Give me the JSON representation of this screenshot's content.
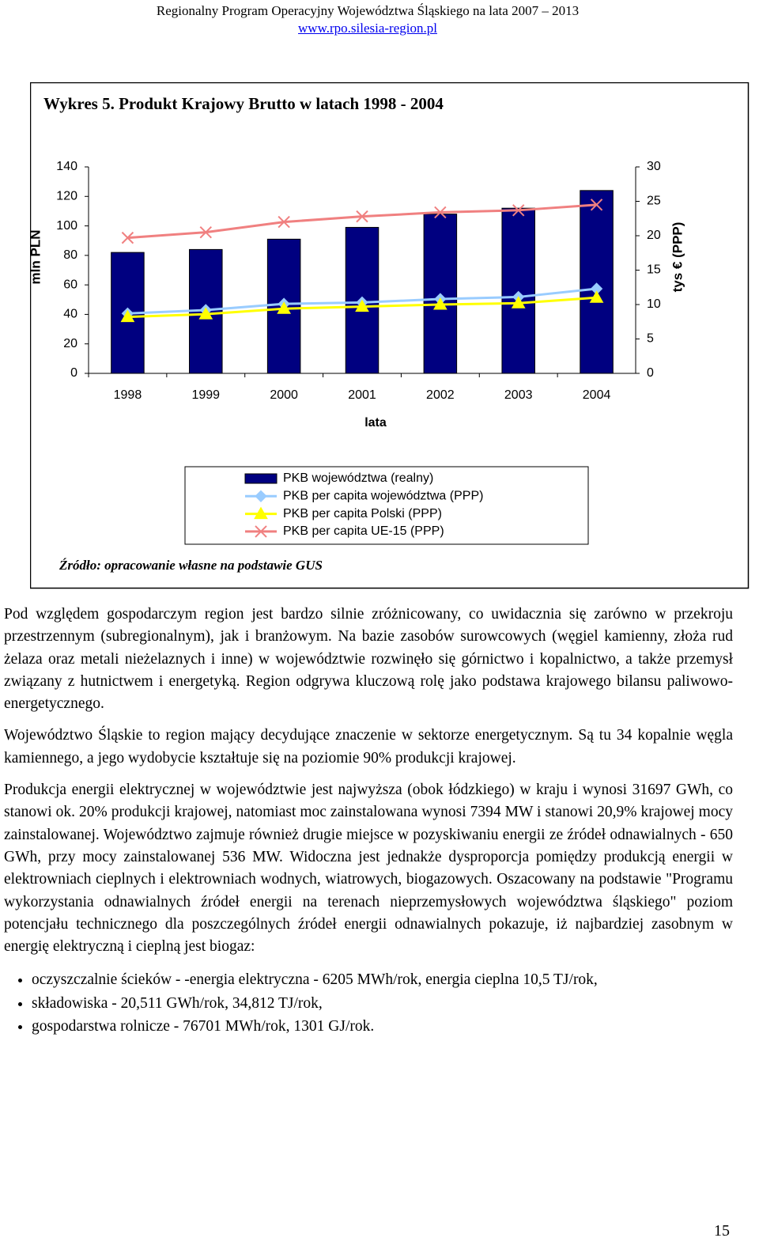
{
  "header": {
    "title": "Regionalny Program Operacyjny Województwa Śląskiego na lata 2007 – 2013",
    "url": "www.rpo.silesia-region.pl"
  },
  "chart_data": {
    "type": "bar",
    "title": "Wykres 5. Produkt Krajowy Brutto w latach 1998 - 2004",
    "x_label": "lata",
    "y_label": "mln PLN",
    "y2_label": "tys € (PPP)",
    "categories": [
      "1998",
      "1999",
      "2000",
      "2001",
      "2002",
      "2003",
      "2004"
    ],
    "series": [
      {
        "name": "PKB województwa (realny)",
        "kind": "bar",
        "color": "#000080",
        "axis": "y",
        "values": [
          82,
          84,
          91,
          99,
          108,
          112,
          124
        ]
      },
      {
        "name": "PKB per capita województwa (PPP)",
        "kind": "line",
        "marker": "diamond",
        "color": "#99ccff",
        "axis": "y2",
        "values": [
          8.7,
          9.2,
          10.1,
          10.3,
          10.8,
          11.1,
          12.3
        ]
      },
      {
        "name": "PKB per capita Polski (PPP)",
        "kind": "line",
        "marker": "triangle",
        "color": "#ffff00",
        "axis": "y2",
        "values": [
          8.2,
          8.6,
          9.4,
          9.7,
          10.0,
          10.2,
          11.0
        ]
      },
      {
        "name": "PKB per capita UE-15 (PPP)",
        "kind": "line",
        "marker": "cross",
        "color": "#f08080",
        "axis": "y2",
        "values": [
          19.7,
          20.5,
          22.0,
          22.8,
          23.4,
          23.7,
          24.5
        ]
      }
    ],
    "ylim": [
      0,
      140
    ],
    "yticks": [
      0,
      20,
      40,
      60,
      80,
      100,
      120,
      140
    ],
    "y2lim": [
      0,
      30
    ],
    "y2ticks": [
      0,
      5,
      10,
      15,
      20,
      25,
      30
    ],
    "grid": false,
    "legend": "bottom",
    "source": "Źródło: opracowanie własne na podstawie GUS"
  },
  "paragraphs": [
    "Pod względem gospodarczym region jest bardzo silnie zróżnicowany, co uwidacznia się zarówno w przekroju przestrzennym (subregionalnym), jak i branżowym. Na bazie zasobów surowcowych (węgiel kamienny, złoża rud żelaza oraz metali nieżelaznych i inne) w województwie rozwinęło się górnictwo i kopalnictwo, a także przemysł związany z hutnictwem i energetyką. Region odgrywa kluczową rolę jako podstawa krajowego bilansu paliwowo-energetycznego.",
    "Województwo Śląskie to region mający decydujące znaczenie w sektorze energetycznym. Są tu 34 kopalnie węgla kamiennego, a jego wydobycie kształtuje się na poziomie 90% produkcji krajowej.",
    "Produkcja energii elektrycznej w województwie jest najwyższa (obok łódzkiego) w kraju i wynosi 31697 GWh, co stanowi ok. 20% produkcji krajowej, natomiast moc zainstalowana wynosi 7394 MW i stanowi 20,9% krajowej mocy zainstalowanej. Województwo zajmuje również drugie miejsce w pozyskiwaniu energii ze źródeł odnawialnych - 650 GWh, przy mocy zainstalowanej 536 MW. Widoczna jest jednakże dysproporcja pomiędzy produkcją energii w elektrowniach cieplnych i elektrowniach wodnych, wiatrowych, biogazowych. Oszacowany na podstawie \"Programu wykorzystania odnawialnych źródeł energii na terenach nieprzemysłowych województwa śląskiego\" poziom potencjału technicznego dla poszczególnych źródeł energii odnawialnych pokazuje, iż najbardziej zasobnym w energię elektryczną i cieplną jest biogaz:"
  ],
  "bullets": [
    "oczyszczalnie ścieków - -energia elektryczna - 6205 MWh/rok, energia cieplna 10,5 TJ/rok,",
    "składowiska - 20,511 GWh/rok, 34,812 TJ/rok,",
    "gospodarstwa rolnicze - 76701 MWh/rok, 1301 GJ/rok."
  ],
  "page_number": "15"
}
